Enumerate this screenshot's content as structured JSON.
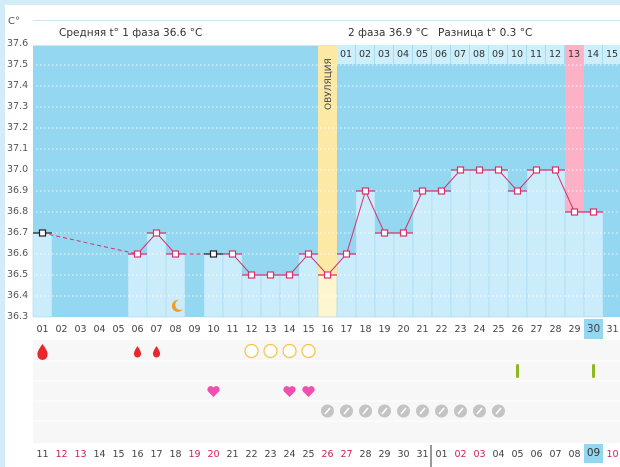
{
  "header": {
    "unit": "C°",
    "phase1": "Средняя t° 1 фаза 36.6 °C",
    "phase2": "2 фаза 36.9 °C",
    "diff": "Разница t° 0.3 °C",
    "ovulation_label": "ОВУЛЯЦИЯ"
  },
  "colors": {
    "background": "#94d7f0",
    "bar": "#cbedfb",
    "line": "#d6336c",
    "ovulation": "#fde9a6",
    "highlight": "#fdb1c7"
  },
  "chart_data": {
    "type": "line",
    "ylim": [
      36.3,
      37.6
    ],
    "yticks": [
      "37.6",
      "37.5",
      "37.4",
      "37.3",
      "37.2",
      "37.1",
      "37.0",
      "36.9",
      "36.8",
      "36.7",
      "36.6",
      "36.5",
      "36.4",
      "36.3"
    ],
    "days": [
      "01",
      "02",
      "03",
      "04",
      "05",
      "06",
      "07",
      "08",
      "09",
      "10",
      "11",
      "12",
      "13",
      "14",
      "15",
      "16",
      "17",
      "18",
      "19",
      "20",
      "21",
      "22",
      "23",
      "24",
      "25",
      "26",
      "27",
      "28",
      "29",
      "30",
      "31"
    ],
    "temperatures": [
      36.7,
      null,
      null,
      null,
      null,
      36.6,
      36.7,
      36.6,
      null,
      36.6,
      36.6,
      36.5,
      36.5,
      36.5,
      36.6,
      36.5,
      36.6,
      36.9,
      36.7,
      36.7,
      36.9,
      36.9,
      37.0,
      37.0,
      37.0,
      36.9,
      37.0,
      37.0,
      36.8,
      36.8,
      null
    ],
    "unconfirmed_days": [
      1,
      10
    ],
    "ovulation_day": 16,
    "highlight_day": 29,
    "current_day": 30,
    "moon_day": 8,
    "phase2_counter": [
      "01",
      "02",
      "03",
      "04",
      "05",
      "06",
      "07",
      "08",
      "09",
      "10",
      "11",
      "12",
      "13",
      "14",
      "15"
    ]
  },
  "calendar_dates": [
    "11",
    "12",
    "13",
    "14",
    "15",
    "16",
    "17",
    "18",
    "19",
    "20",
    "21",
    "22",
    "23",
    "24",
    "25",
    "26",
    "27",
    "28",
    "29",
    "30",
    "31",
    "01",
    "02",
    "03",
    "04",
    "05",
    "06",
    "07",
    "08",
    "09",
    "10"
  ],
  "weekend_dates": [
    2,
    3,
    9,
    10,
    16,
    17,
    23,
    24,
    31
  ],
  "today_date_index": 30,
  "markers": {
    "bleeding_large": [
      1
    ],
    "bleeding_small": [
      6,
      7
    ],
    "yellow_circles": [
      12,
      13,
      14,
      15
    ],
    "green_bars": [
      26,
      30
    ],
    "hearts": [
      10,
      14,
      15
    ],
    "pills": [
      16,
      17,
      18,
      19,
      20,
      21,
      22,
      23,
      24,
      25
    ]
  }
}
